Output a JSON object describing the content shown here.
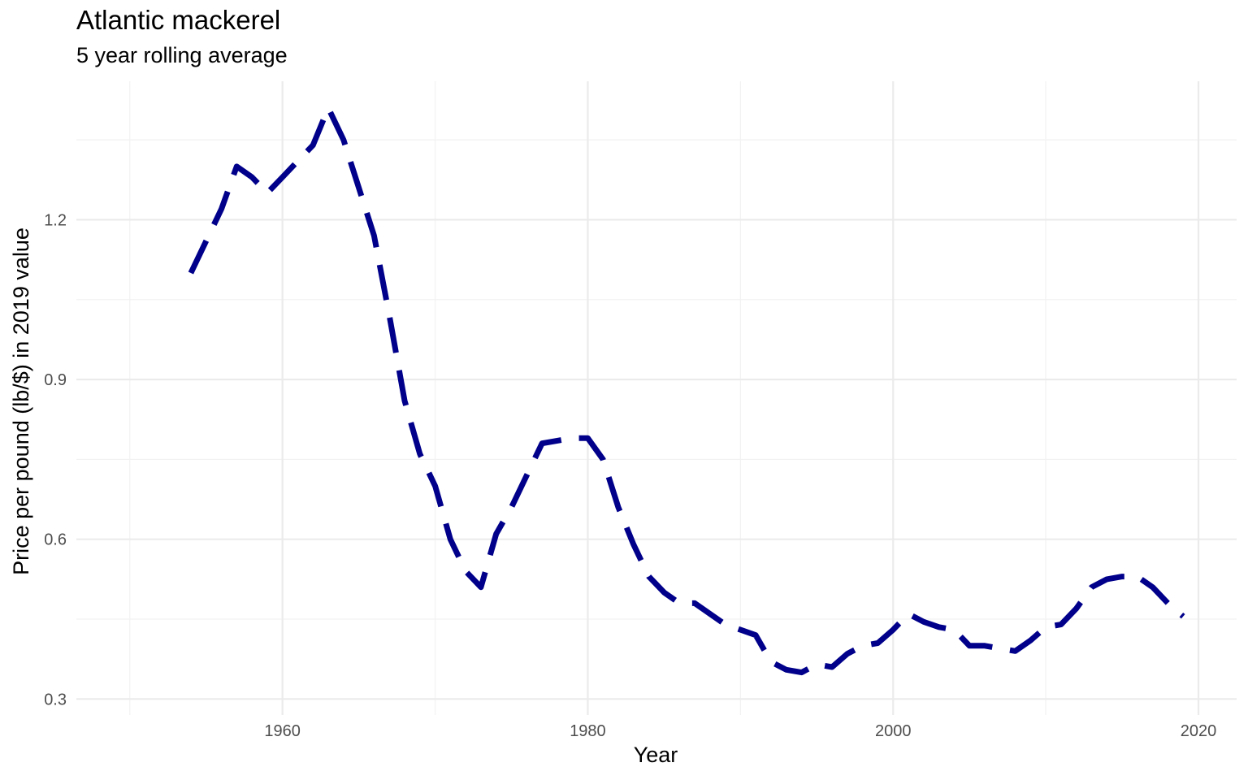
{
  "chart_data": {
    "type": "line",
    "title": "Atlantic mackerel",
    "subtitle": "5 year rolling average",
    "xlabel": "Year",
    "ylabel": "Price per pound (lb/$) in 2019 value",
    "xlim": [
      1946.5,
      2022.5
    ],
    "ylim": [
      0.27,
      1.46
    ],
    "x_ticks": [
      1960,
      1980,
      2000,
      2020
    ],
    "x_minor_ticks": [
      1950,
      1970,
      1990,
      2010
    ],
    "y_ticks": [
      0.3,
      0.6,
      0.9,
      1.2
    ],
    "y_minor_ticks": [
      0.45,
      0.75,
      1.05,
      1.35
    ],
    "grid": true,
    "legend": "none",
    "line_style": "dashed",
    "color": "#00008b",
    "x": [
      1954,
      1955,
      1956,
      1957,
      1958,
      1959,
      1960,
      1961,
      1962,
      1963,
      1964,
      1965,
      1966,
      1967,
      1968,
      1969,
      1970,
      1971,
      1972,
      1973,
      1974,
      1975,
      1976,
      1977,
      1978,
      1979,
      1980,
      1981,
      1982,
      1983,
      1984,
      1985,
      1986,
      1987,
      1988,
      1989,
      1990,
      1991,
      1992,
      1993,
      1994,
      1995,
      1996,
      1997,
      1998,
      1999,
      2000,
      2001,
      2002,
      2003,
      2004,
      2005,
      2006,
      2007,
      2008,
      2009,
      2010,
      2011,
      2012,
      2013,
      2014,
      2015,
      2016,
      2017,
      2018,
      2019
    ],
    "values": [
      1.1,
      1.16,
      1.22,
      1.3,
      1.28,
      1.25,
      1.28,
      1.31,
      1.34,
      1.41,
      1.35,
      1.26,
      1.17,
      1.02,
      0.86,
      0.76,
      0.7,
      0.6,
      0.54,
      0.51,
      0.61,
      0.66,
      0.72,
      0.78,
      0.785,
      0.79,
      0.79,
      0.75,
      0.66,
      0.59,
      0.53,
      0.5,
      0.48,
      0.48,
      0.46,
      0.44,
      0.43,
      0.42,
      0.37,
      0.355,
      0.35,
      0.365,
      0.36,
      0.385,
      0.4,
      0.405,
      0.43,
      0.46,
      0.445,
      0.435,
      0.43,
      0.4,
      0.4,
      0.395,
      0.39,
      0.41,
      0.435,
      0.44,
      0.47,
      0.51,
      0.525,
      0.53,
      0.53,
      0.51,
      0.48,
      0.455
    ]
  }
}
